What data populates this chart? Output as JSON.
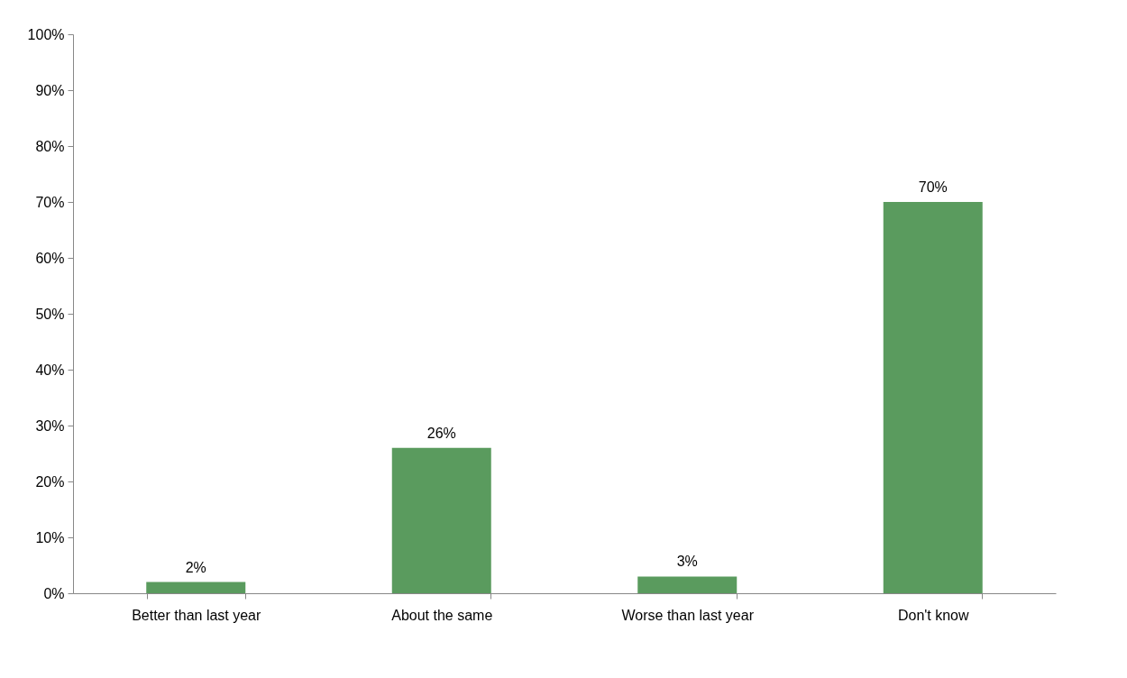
{
  "chart_data": {
    "type": "bar",
    "categories": [
      "Better than last year",
      "About the same",
      "Worse than last year",
      "Don't know"
    ],
    "values": [
      2,
      26,
      3,
      70
    ],
    "color": "#5a9b5e",
    "value_labels": [
      "2%",
      "26%",
      "3%",
      "70%"
    ],
    "ylim": [
      0,
      100
    ],
    "yticks": [
      {
        "value": 0,
        "label": "0%"
      },
      {
        "value": 10,
        "label": "10%"
      },
      {
        "value": 20,
        "label": "20%"
      },
      {
        "value": 30,
        "label": "30%"
      },
      {
        "value": 40,
        "label": "40%"
      },
      {
        "value": 50,
        "label": "50%"
      },
      {
        "value": 60,
        "label": "60%"
      },
      {
        "value": 70,
        "label": "70%"
      },
      {
        "value": 80,
        "label": "80%"
      },
      {
        "value": 90,
        "label": "90%"
      },
      {
        "value": 100,
        "label": "100%"
      }
    ],
    "grid": false
  }
}
